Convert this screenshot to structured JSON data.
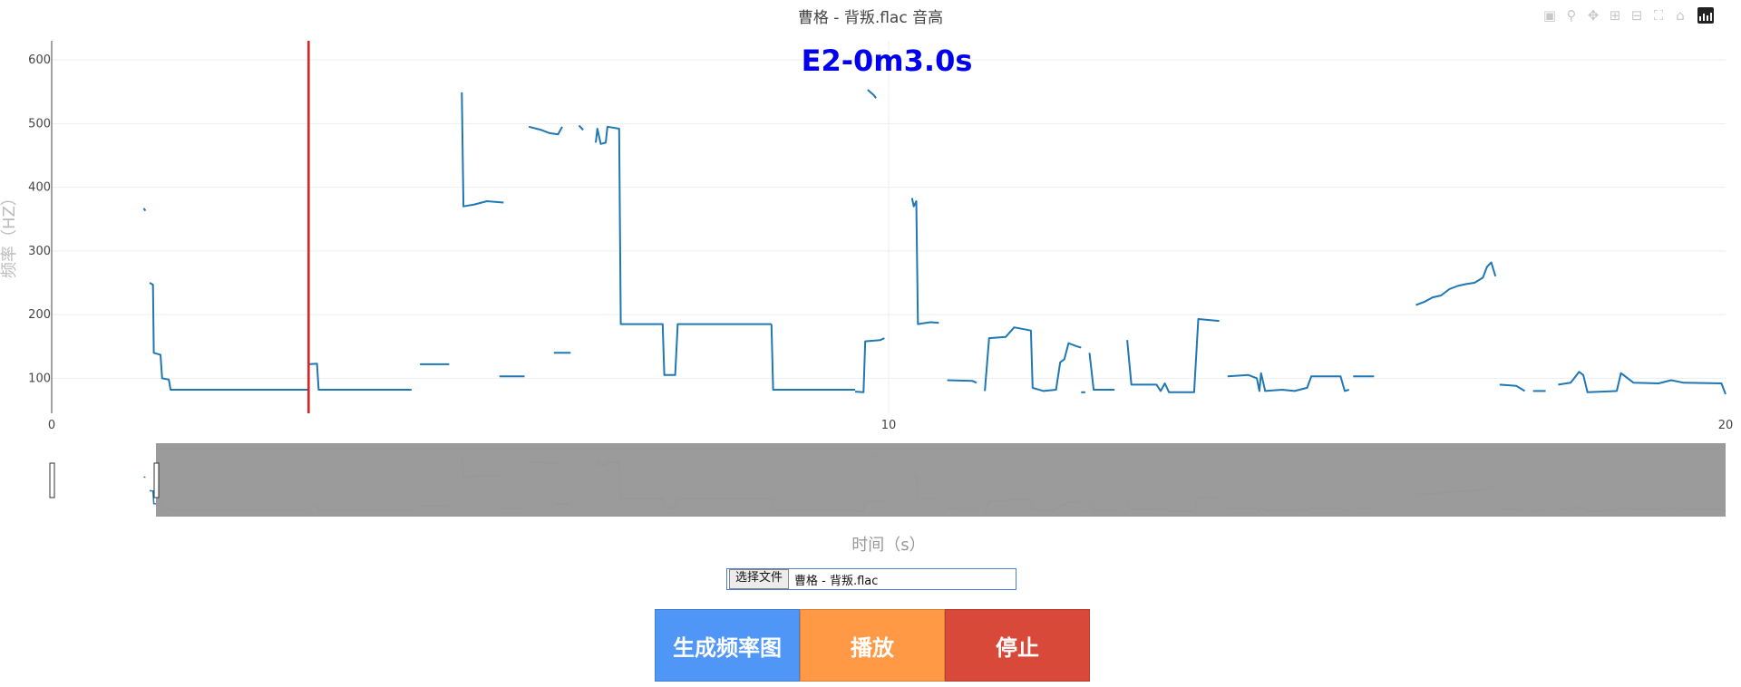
{
  "chart_data": {
    "type": "line",
    "title": "曹格 - 背叛.flac 音高",
    "xlabel": "时间（s）",
    "ylabel": "频率（HZ）",
    "xlim": [
      0,
      20
    ],
    "ylim": [
      45,
      630
    ],
    "x_ticks": [
      "0",
      "10",
      "20"
    ],
    "y_ticks": [
      "100",
      "200",
      "300",
      "400",
      "500",
      "600"
    ],
    "grid": true,
    "line_color": "#1f77b4",
    "marker_x": 3.07,
    "marker_color": "#e6191c",
    "annotation": "E2-0m3.0s",
    "series": [
      {
        "points": [
          [
            1.1,
            367
          ],
          [
            1.12,
            363
          ]
        ]
      },
      {
        "points": [
          [
            1.17,
            250
          ],
          [
            1.21,
            247
          ],
          [
            1.22,
            140
          ],
          [
            1.3,
            137
          ],
          [
            1.32,
            100
          ],
          [
            1.4,
            98
          ],
          [
            1.42,
            82
          ],
          [
            3.07,
            82
          ]
        ]
      },
      {
        "points": [
          [
            3.07,
            122
          ],
          [
            3.17,
            123
          ],
          [
            3.19,
            82
          ],
          [
            4.3,
            82
          ]
        ]
      },
      {
        "points": [
          [
            4.4,
            122
          ],
          [
            4.75,
            122
          ]
        ]
      },
      {
        "points": [
          [
            4.9,
            549
          ],
          [
            4.92,
            370
          ],
          [
            5.05,
            373
          ],
          [
            5.2,
            378
          ],
          [
            5.4,
            376
          ]
        ]
      },
      {
        "points": [
          [
            5.35,
            103
          ],
          [
            5.65,
            103
          ]
        ]
      },
      {
        "points": [
          [
            5.7,
            495
          ],
          [
            5.85,
            490
          ],
          [
            5.95,
            485
          ],
          [
            6.05,
            483
          ],
          [
            6.1,
            495
          ]
        ]
      },
      {
        "points": [
          [
            6.0,
            140
          ],
          [
            6.2,
            140
          ]
        ]
      },
      {
        "points": [
          [
            6.3,
            497
          ],
          [
            6.35,
            490
          ]
        ]
      },
      {
        "points": [
          [
            6.5,
            470
          ],
          [
            6.52,
            492
          ],
          [
            6.56,
            468
          ],
          [
            6.62,
            470
          ],
          [
            6.64,
            495
          ],
          [
            6.78,
            492
          ],
          [
            6.8,
            185
          ],
          [
            7.3,
            185
          ],
          [
            7.32,
            105
          ],
          [
            7.45,
            105
          ],
          [
            7.48,
            185
          ],
          [
            8.6,
            185
          ]
        ]
      },
      {
        "points": [
          [
            8.6,
            185
          ],
          [
            8.62,
            82
          ],
          [
            9.6,
            82
          ]
        ]
      },
      {
        "points": [
          [
            9.75,
            553
          ],
          [
            9.82,
            545
          ],
          [
            9.85,
            540
          ]
        ]
      },
      {
        "points": [
          [
            9.6,
            79
          ],
          [
            9.7,
            78
          ],
          [
            9.72,
            158
          ],
          [
            9.9,
            160
          ],
          [
            9.95,
            163
          ]
        ]
      },
      {
        "points": [
          [
            10.28,
            383
          ],
          [
            10.3,
            370
          ],
          [
            10.33,
            378
          ],
          [
            10.35,
            185
          ],
          [
            10.5,
            188
          ],
          [
            10.6,
            187
          ]
        ]
      },
      {
        "points": [
          [
            10.7,
            97
          ],
          [
            11.0,
            96
          ],
          [
            11.05,
            93
          ]
        ]
      },
      {
        "points": [
          [
            11.15,
            80
          ],
          [
            11.2,
            163
          ],
          [
            11.4,
            165
          ],
          [
            11.5,
            180
          ],
          [
            11.7,
            175
          ],
          [
            11.72,
            85
          ],
          [
            11.85,
            80
          ],
          [
            12.0,
            82
          ],
          [
            12.05,
            125
          ],
          [
            12.1,
            130
          ],
          [
            12.15,
            155
          ],
          [
            12.25,
            150
          ],
          [
            12.3,
            148
          ]
        ]
      },
      {
        "points": [
          [
            12.3,
            78
          ],
          [
            12.35,
            78
          ]
        ]
      },
      {
        "points": [
          [
            12.4,
            140
          ],
          [
            12.45,
            82
          ],
          [
            12.7,
            82
          ]
        ]
      },
      {
        "points": [
          [
            12.85,
            160
          ],
          [
            12.9,
            90
          ],
          [
            13.2,
            90
          ],
          [
            13.25,
            80
          ],
          [
            13.3,
            92
          ],
          [
            13.35,
            78
          ],
          [
            13.65,
            78
          ],
          [
            13.7,
            193
          ],
          [
            13.95,
            190
          ]
        ]
      },
      {
        "points": [
          [
            14.05,
            103
          ],
          [
            14.3,
            105
          ],
          [
            14.4,
            100
          ],
          [
            14.43,
            80
          ],
          [
            14.45,
            108
          ],
          [
            14.5,
            80
          ],
          [
            14.7,
            82
          ],
          [
            14.85,
            80
          ],
          [
            15.0,
            85
          ],
          [
            15.05,
            103
          ],
          [
            15.4,
            103
          ],
          [
            15.45,
            80
          ],
          [
            15.5,
            82
          ]
        ]
      },
      {
        "points": [
          [
            15.55,
            103
          ],
          [
            15.8,
            103
          ]
        ]
      },
      {
        "points": [
          [
            16.3,
            215
          ],
          [
            16.4,
            220
          ],
          [
            16.5,
            227
          ],
          [
            16.6,
            230
          ],
          [
            16.7,
            240
          ],
          [
            16.8,
            245
          ],
          [
            16.9,
            248
          ],
          [
            17.0,
            250
          ],
          [
            17.1,
            258
          ],
          [
            17.15,
            275
          ],
          [
            17.2,
            282
          ],
          [
            17.25,
            260
          ]
        ]
      },
      {
        "points": [
          [
            17.3,
            90
          ],
          [
            17.5,
            88
          ],
          [
            17.6,
            80
          ]
        ]
      },
      {
        "points": [
          [
            17.7,
            80
          ],
          [
            17.85,
            80
          ]
        ]
      },
      {
        "points": [
          [
            18.0,
            90
          ],
          [
            18.15,
            93
          ],
          [
            18.25,
            110
          ],
          [
            18.3,
            105
          ],
          [
            18.35,
            78
          ],
          [
            18.7,
            80
          ],
          [
            18.75,
            108
          ],
          [
            18.9,
            93
          ],
          [
            19.2,
            92
          ],
          [
            19.35,
            97
          ],
          [
            19.5,
            93
          ],
          [
            19.95,
            92
          ],
          [
            20.0,
            75
          ]
        ]
      }
    ]
  },
  "toolbar": {
    "file_button_label": "选择文件",
    "file_name": "曹格 - 背叛.flac",
    "generate_label": "生成频率图",
    "play_label": "播放",
    "stop_label": "停止"
  },
  "colors": {
    "generate": "#4f96f6",
    "play": "#ff9945",
    "stop": "#d9493a"
  },
  "icons": [
    "camera-icon",
    "zoom-icon",
    "pan-icon",
    "zoom-in-icon",
    "zoom-out-icon",
    "autoscale-icon",
    "home-icon",
    "plotly-logo-icon"
  ]
}
